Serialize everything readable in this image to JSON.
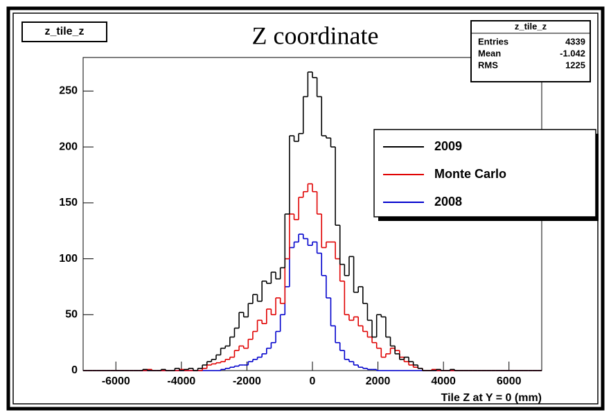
{
  "chart_data": {
    "type": "histogram",
    "title": "Z coordinate",
    "label": "z_tile_z",
    "xlabel": "Tile Z at Y = 0 (mm)",
    "bins": [
      -7000,
      -6860,
      -6720,
      -6580,
      -6440,
      -6300,
      -6160,
      -6020,
      -5880,
      -5740,
      -5600,
      -5460,
      -5320,
      -5180,
      -5040,
      -4900,
      -4760,
      -4620,
      -4480,
      -4340,
      -4200,
      -4060,
      -3920,
      -3780,
      -3640,
      -3500,
      -3360,
      -3220,
      -3080,
      -2940,
      -2800,
      -2660,
      -2520,
      -2380,
      -2240,
      -2100,
      -1960,
      -1820,
      -1680,
      -1540,
      -1400,
      -1260,
      -1120,
      -980,
      -840,
      -700,
      -560,
      -420,
      -280,
      -140,
      0,
      140,
      280,
      420,
      560,
      700,
      840,
      980,
      1120,
      1260,
      1400,
      1540,
      1680,
      1820,
      1960,
      2100,
      2240,
      2380,
      2520,
      2660,
      2800,
      2940,
      3080,
      3220,
      3360,
      3500,
      3640,
      3780,
      3920,
      4060,
      4200,
      4340,
      4480,
      4620,
      4760,
      4900,
      5040,
      5180,
      5320,
      5460,
      5600,
      5740,
      5880,
      6020,
      6160,
      6300,
      6440,
      6580,
      6720,
      6860,
      7000
    ],
    "series": [
      {
        "name": "2009",
        "color": "#000000",
        "values": [
          0,
          0,
          0,
          0,
          0,
          0,
          0,
          0,
          0,
          0,
          0,
          0,
          0,
          1,
          0,
          0,
          0,
          1,
          0,
          0,
          2,
          0,
          1,
          2,
          0,
          2,
          5,
          8,
          10,
          14,
          20,
          22,
          30,
          38,
          52,
          48,
          60,
          68,
          62,
          80,
          78,
          88,
          82,
          92,
          140,
          210,
          205,
          212,
          245,
          267,
          262,
          245,
          210,
          208,
          200,
          130,
          95,
          85,
          102,
          70,
          75,
          60,
          45,
          30,
          50,
          48,
          30,
          22,
          15,
          10,
          12,
          8,
          5,
          2,
          0,
          0,
          0,
          1,
          0,
          0,
          1,
          0,
          0,
          0,
          0,
          0,
          0,
          0,
          0,
          0,
          0,
          0,
          0,
          0,
          0,
          0,
          0,
          0,
          0,
          0
        ]
      },
      {
        "name": "Monte Carlo",
        "color": "#e00000",
        "values": [
          0,
          0,
          0,
          0,
          0,
          0,
          0,
          0,
          0,
          0,
          0,
          0,
          0,
          0,
          1,
          0,
          0,
          0,
          0,
          0,
          0,
          1,
          0,
          0,
          0,
          0,
          2,
          5,
          6,
          7,
          8,
          10,
          12,
          18,
          22,
          20,
          28,
          35,
          45,
          42,
          55,
          50,
          65,
          60,
          100,
          140,
          135,
          155,
          160,
          167,
          160,
          140,
          110,
          115,
          115,
          100,
          80,
          50,
          45,
          48,
          40,
          35,
          30,
          25,
          20,
          12,
          15,
          20,
          18,
          12,
          8,
          5,
          3,
          2,
          0,
          0,
          1,
          0,
          0,
          0,
          0,
          0,
          0,
          0,
          0,
          0,
          0,
          0,
          0,
          0,
          0,
          0,
          0,
          0,
          0,
          0,
          0,
          0,
          0,
          0
        ]
      },
      {
        "name": "2008",
        "color": "#0000cc",
        "values": [
          0,
          0,
          0,
          0,
          0,
          0,
          0,
          0,
          0,
          0,
          0,
          0,
          0,
          0,
          0,
          0,
          0,
          0,
          0,
          0,
          0,
          0,
          0,
          0,
          0,
          0,
          0,
          0,
          0,
          0,
          1,
          2,
          3,
          4,
          5,
          5,
          8,
          10,
          12,
          15,
          20,
          25,
          35,
          50,
          75,
          110,
          115,
          122,
          118,
          112,
          115,
          105,
          85,
          65,
          40,
          25,
          18,
          10,
          8,
          5,
          3,
          2,
          1,
          1,
          0,
          0,
          0,
          0,
          0,
          0,
          0,
          0,
          0,
          0,
          0,
          0,
          0,
          0,
          0,
          0,
          0,
          0,
          0,
          0,
          0,
          0,
          0,
          0,
          0,
          0,
          0,
          0,
          0,
          0,
          0,
          0,
          0,
          0,
          0,
          0
        ]
      }
    ],
    "xlim": [
      -7000,
      7000
    ],
    "xticks": [
      -6000,
      -4000,
      -2000,
      0,
      2000,
      4000,
      6000
    ],
    "ylim": [
      0,
      280
    ],
    "yticks": [
      0,
      50,
      100,
      150,
      200,
      250
    ],
    "stats": {
      "title": "z_tile_z",
      "rows": [
        {
          "label": "Entries",
          "value": 4339
        },
        {
          "label": "Mean",
          "value": -1.042
        },
        {
          "label": "RMS",
          "value": 1225
        }
      ]
    }
  }
}
